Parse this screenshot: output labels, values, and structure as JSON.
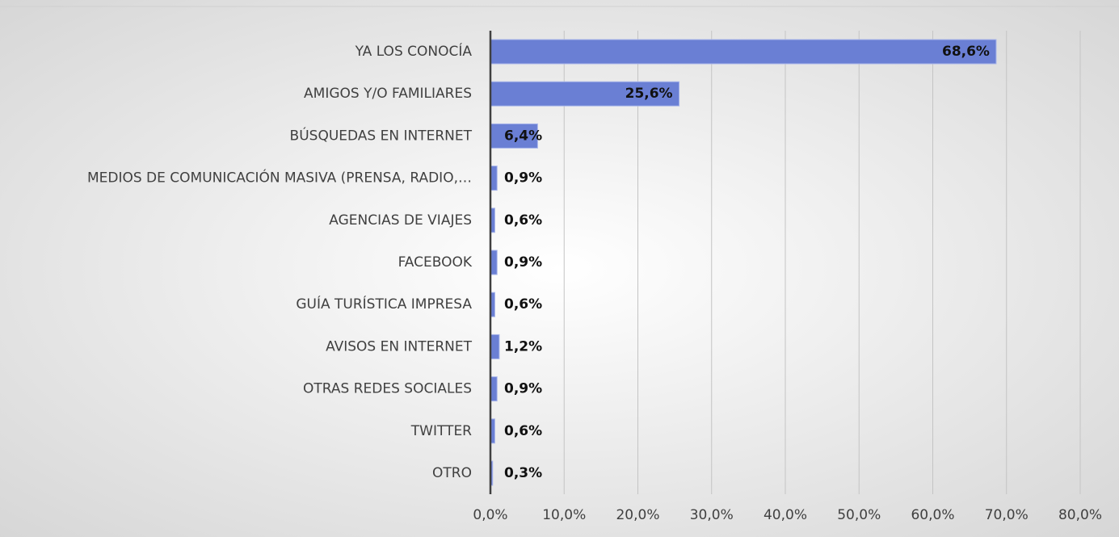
{
  "chart_data": {
    "type": "bar",
    "orientation": "horizontal",
    "categories": [
      "YA LOS CONOCÍA",
      "AMIGOS Y/O FAMILIARES",
      "BÚSQUEDAS EN INTERNET",
      "MEDIOS DE COMUNICACIÓN MASIVA (PRENSA, RADIO,…",
      "AGENCIAS DE VIAJES",
      "FACEBOOK",
      "GUÍA TURÍSTICA IMPRESA",
      "AVISOS EN INTERNET",
      "OTRAS REDES SOCIALES",
      "TWITTER",
      "OTRO"
    ],
    "values": [
      68.6,
      25.6,
      6.4,
      0.9,
      0.6,
      0.9,
      0.6,
      1.2,
      0.9,
      0.6,
      0.3
    ],
    "value_labels": [
      "68,6%",
      "25,6%",
      "6,4%",
      "0,9%",
      "0,6%",
      "0,9%",
      "0,6%",
      "1,2%",
      "0,9%",
      "0,6%",
      "0,3%"
    ],
    "color": "#6a7fd4",
    "xlim": [
      0,
      80
    ],
    "xticks": [
      {
        "value": 0,
        "label": "0,0%"
      },
      {
        "value": 10,
        "label": "10,0%"
      },
      {
        "value": 20,
        "label": "20,0%"
      },
      {
        "value": 30,
        "label": "30,0%"
      },
      {
        "value": 40,
        "label": "40,0%"
      },
      {
        "value": 50,
        "label": "50,0%"
      },
      {
        "value": 60,
        "label": "60,0%"
      },
      {
        "value": 70,
        "label": "70,0%"
      },
      {
        "value": 80,
        "label": "80,0%"
      }
    ],
    "grid": true
  }
}
